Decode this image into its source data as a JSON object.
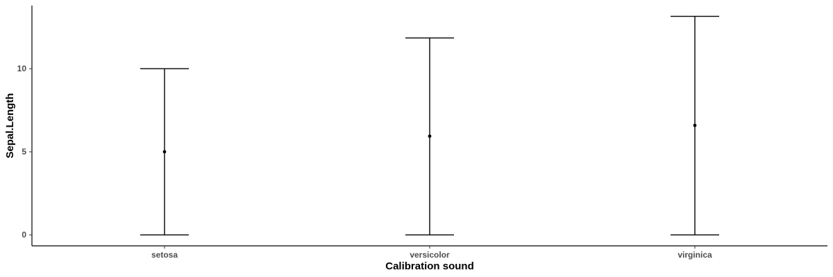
{
  "chart_data": {
    "type": "errorbar",
    "categories": [
      "setosa",
      "versicolor",
      "virginica"
    ],
    "series": [
      {
        "mean": [
          5.0,
          5.94,
          6.59
        ],
        "lower": [
          0.0,
          0.0,
          0.0
        ],
        "upper": [
          10.0,
          11.85,
          13.15
        ]
      }
    ],
    "xlabel": "Calibration sound",
    "ylabel": "Sepal.Length",
    "yticks": [
      0,
      5,
      10
    ],
    "ylim": [
      -0.66,
      13.8
    ],
    "grid": false,
    "legend": "none",
    "colors": {
      "line": "#000000",
      "point": "#000000",
      "tick_text": "#4d4d4d",
      "axis": "#000000"
    }
  }
}
